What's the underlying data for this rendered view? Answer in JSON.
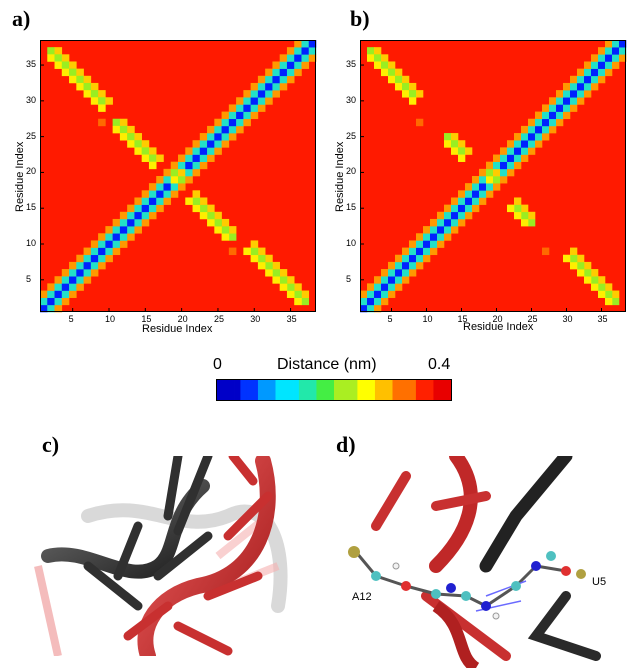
{
  "panels": {
    "a": "a)",
    "b": "b)",
    "c": "c)",
    "d": "d)"
  },
  "colorbar": {
    "min_label": "0",
    "max_label": "0.4",
    "title": "Distance (nm)",
    "colors": [
      "#0000c8",
      "#0033ff",
      "#0099ff",
      "#00e5ff",
      "#22e8aa",
      "#44ee44",
      "#aaee22",
      "#ffff00",
      "#ffc000",
      "#ff7000",
      "#ff2000",
      "#e80000"
    ]
  },
  "chart_data": [
    {
      "type": "heatmap",
      "panel": "a)",
      "xlabel": "Residue Index",
      "ylabel": "Residue Index",
      "x_ticks": [
        5,
        10,
        15,
        20,
        25,
        30,
        35
      ],
      "y_ticks": [
        5,
        10,
        15,
        20,
        25,
        30,
        35
      ],
      "n": 38,
      "value_range": [
        0,
        0.4
      ],
      "background_value": 0.4,
      "diagonal": "0 nm on diagonal, ~0.2 nm neighbours",
      "antidiagonal_contacts": [
        [
          2,
          37
        ],
        [
          3,
          36
        ],
        [
          4,
          35
        ],
        [
          5,
          34
        ],
        [
          6,
          33
        ],
        [
          7,
          32
        ],
        [
          8,
          31
        ],
        [
          9,
          30
        ],
        [
          11,
          27
        ],
        [
          12,
          26
        ],
        [
          13,
          25
        ],
        [
          14,
          24
        ],
        [
          15,
          23
        ],
        [
          16,
          22
        ],
        [
          19,
          20
        ]
      ],
      "isolated_contacts": [
        [
          9,
          27
        ],
        [
          27,
          9
        ]
      ]
    },
    {
      "type": "heatmap",
      "panel": "b)",
      "xlabel": "Residue Index",
      "ylabel": "Residue Index",
      "x_ticks": [
        5,
        10,
        15,
        20,
        25,
        30,
        35
      ],
      "y_ticks": [
        5,
        10,
        15,
        20,
        25,
        30,
        35
      ],
      "n": 38,
      "value_range": [
        0,
        0.4
      ],
      "background_value": 0.4,
      "diagonal": "0 nm on diagonal, ~0.2 nm neighbours",
      "antidiagonal_contacts": [
        [
          2,
          37
        ],
        [
          3,
          36
        ],
        [
          4,
          35
        ],
        [
          5,
          34
        ],
        [
          6,
          33
        ],
        [
          7,
          32
        ],
        [
          8,
          31
        ],
        [
          13,
          25
        ],
        [
          14,
          24
        ],
        [
          15,
          23
        ],
        [
          19,
          20
        ]
      ],
      "isolated_contacts": [
        [
          9,
          27
        ],
        [
          27,
          9
        ]
      ]
    }
  ],
  "images": {
    "d_labels": {
      "a12": "A12",
      "u5": "U5"
    }
  }
}
